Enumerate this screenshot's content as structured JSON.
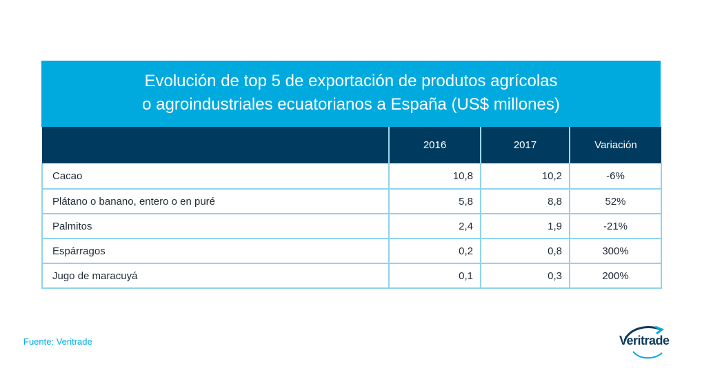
{
  "title": {
    "line1": "Evolución de top 5 de exportación de produtos agrícolas",
    "line2": "o agroindustriales ecuatorianos a España (US$ millones)"
  },
  "chart_data": {
    "type": "table",
    "columns": [
      "",
      "2016",
      "2017",
      "Variación"
    ],
    "rows": [
      {
        "label": "Cacao",
        "v2016": "10,8",
        "v2017": "10,2",
        "variacion": "-6%"
      },
      {
        "label": "Plátano o banano, entero o en puré",
        "v2016": "5,8",
        "v2017": "8,8",
        "variacion": "52%"
      },
      {
        "label": "Palmitos",
        "v2016": "2,4",
        "v2017": "1,9",
        "variacion": "-21%"
      },
      {
        "label": "Espárragos",
        "v2016": "0,2",
        "v2017": "0,8",
        "variacion": "300%"
      },
      {
        "label": "Jugo de maracuyá",
        "v2016": "0,1",
        "v2017": "0,3",
        "variacion": "200%"
      }
    ]
  },
  "source": "Fuente: Veritrade",
  "logo": {
    "text": "Veritrade"
  },
  "colors": {
    "title_bg": "#00aadf",
    "header_bg": "#003b5f",
    "grid": "#8fd3ee",
    "logo": "#0f3a5c"
  }
}
